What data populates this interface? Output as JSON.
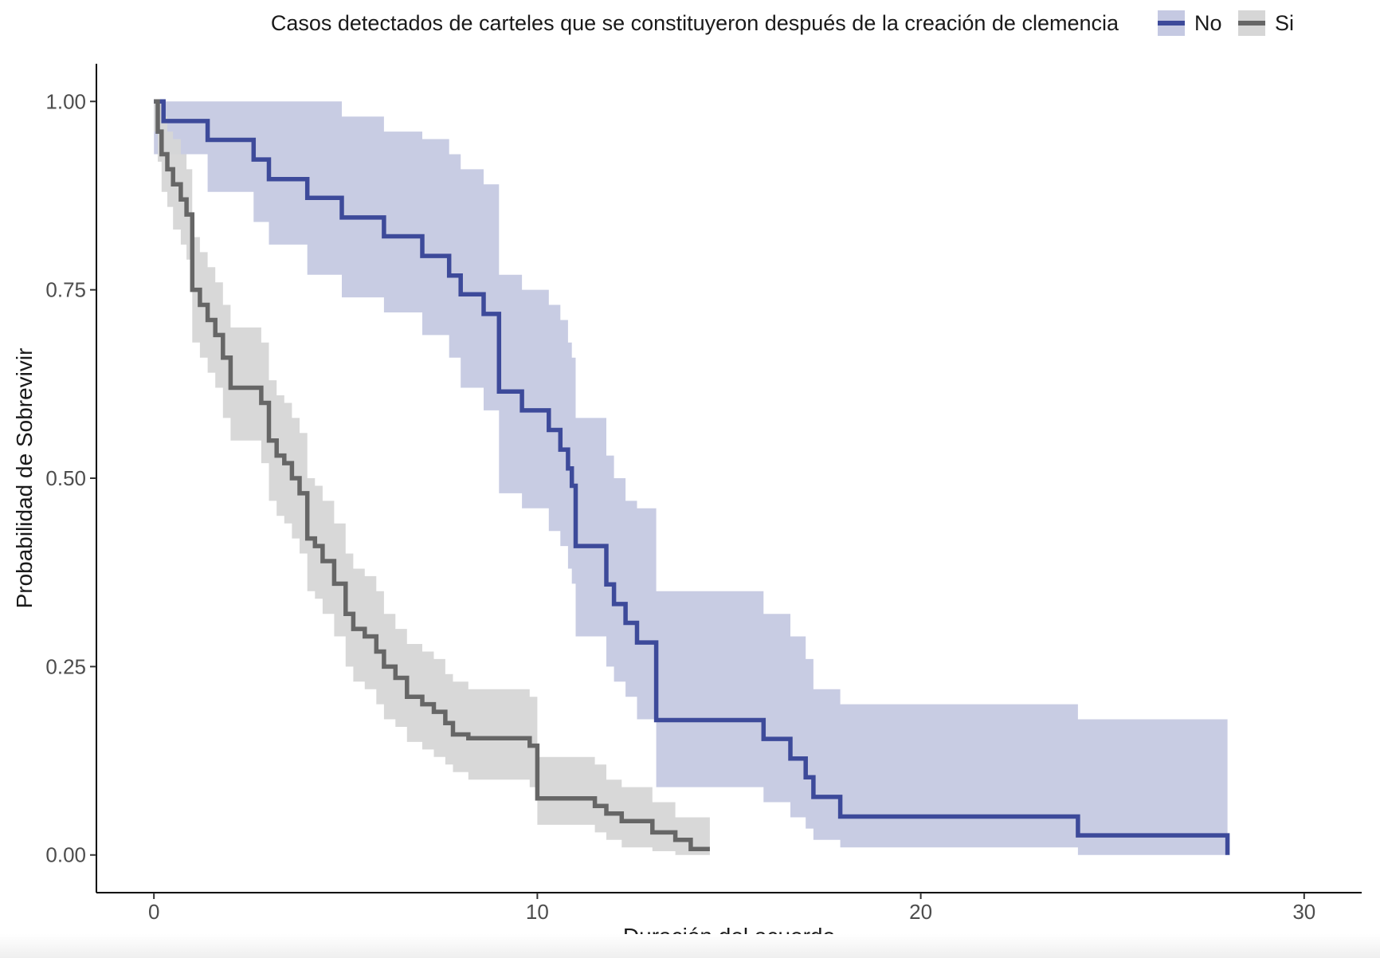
{
  "chart_data": {
    "type": "line",
    "subtype": "kaplan-meier",
    "legend_title": "Casos detectados de carteles que se constituyeron después de la creación de clemencia",
    "legend_position": "top",
    "xlabel": "Duración del acuerdo",
    "ylabel": "Probabilidad de Sobrevivir",
    "xlim": [
      -1.5,
      31.5
    ],
    "ylim": [
      -0.05,
      1.05
    ],
    "x_ticks": [
      0,
      10,
      20,
      30
    ],
    "x_tick_labels": [
      "0",
      "10",
      "20",
      "30"
    ],
    "y_ticks": [
      0,
      0.25,
      0.5,
      0.75,
      1
    ],
    "y_tick_labels": [
      "0.00",
      "0.25",
      "0.50",
      "0.75",
      "1.00"
    ],
    "grid": false,
    "series": [
      {
        "name": "No",
        "color": "#3d4a9a",
        "band_color": "#c5c9e2",
        "x": [
          0,
          0.25,
          1.4,
          2.6,
          3.0,
          4.0,
          4.9,
          6.0,
          7.0,
          7.7,
          8.0,
          8.6,
          9.0,
          9.6,
          10.3,
          10.6,
          10.8,
          10.9,
          11.0,
          11.8,
          12.0,
          12.3,
          12.6,
          13.1,
          15.9,
          16.6,
          17.0,
          17.2,
          17.9,
          24.1,
          28.0
        ],
        "y": [
          1.0,
          0.974,
          0.949,
          0.923,
          0.897,
          0.872,
          0.846,
          0.821,
          0.795,
          0.769,
          0.744,
          0.718,
          0.615,
          0.59,
          0.564,
          0.538,
          0.513,
          0.49,
          0.41,
          0.359,
          0.333,
          0.308,
          0.282,
          0.179,
          0.154,
          0.128,
          0.103,
          0.077,
          0.051,
          0.026,
          0.0
        ],
        "lower": [
          0.93,
          0.93,
          0.88,
          0.84,
          0.81,
          0.77,
          0.74,
          0.72,
          0.69,
          0.66,
          0.62,
          0.59,
          0.48,
          0.46,
          0.43,
          0.41,
          0.38,
          0.36,
          0.29,
          0.25,
          0.23,
          0.21,
          0.18,
          0.09,
          0.07,
          0.05,
          0.035,
          0.02,
          0.01,
          0.0,
          0.0
        ],
        "upper": [
          1.0,
          1.0,
          1.0,
          1.0,
          1.0,
          1.0,
          0.98,
          0.96,
          0.95,
          0.93,
          0.91,
          0.89,
          0.77,
          0.75,
          0.73,
          0.71,
          0.68,
          0.66,
          0.58,
          0.53,
          0.5,
          0.47,
          0.46,
          0.35,
          0.32,
          0.29,
          0.26,
          0.22,
          0.2,
          0.18,
          0.18
        ]
      },
      {
        "name": "Si",
        "color": "#666666",
        "band_color": "#d6d6d6",
        "x": [
          0,
          0.1,
          0.2,
          0.35,
          0.5,
          0.7,
          0.85,
          1.0,
          1.2,
          1.4,
          1.6,
          1.8,
          2.0,
          2.8,
          3.0,
          3.2,
          3.4,
          3.6,
          3.8,
          4.0,
          4.2,
          4.4,
          4.7,
          5.0,
          5.2,
          5.5,
          5.8,
          6.0,
          6.3,
          6.6,
          7.0,
          7.3,
          7.6,
          7.8,
          8.0,
          8.2,
          9.0,
          9.8,
          10.0,
          11.5,
          11.8,
          12.2,
          13.0,
          13.6,
          14.0,
          14.5
        ],
        "y": [
          1.0,
          0.96,
          0.93,
          0.91,
          0.89,
          0.87,
          0.85,
          0.75,
          0.73,
          0.71,
          0.69,
          0.66,
          0.62,
          0.6,
          0.55,
          0.53,
          0.52,
          0.5,
          0.48,
          0.42,
          0.41,
          0.39,
          0.36,
          0.32,
          0.3,
          0.29,
          0.27,
          0.25,
          0.235,
          0.21,
          0.2,
          0.19,
          0.175,
          0.16,
          0.16,
          0.155,
          0.155,
          0.145,
          0.075,
          0.065,
          0.055,
          0.045,
          0.03,
          0.02,
          0.008,
          0.008
        ],
        "lower": [
          0.96,
          0.92,
          0.88,
          0.86,
          0.83,
          0.81,
          0.79,
          0.68,
          0.66,
          0.64,
          0.62,
          0.58,
          0.55,
          0.52,
          0.47,
          0.45,
          0.44,
          0.42,
          0.4,
          0.35,
          0.34,
          0.32,
          0.29,
          0.25,
          0.23,
          0.22,
          0.2,
          0.18,
          0.17,
          0.15,
          0.14,
          0.13,
          0.12,
          0.11,
          0.11,
          0.1,
          0.1,
          0.09,
          0.04,
          0.03,
          0.02,
          0.01,
          0.005,
          0.0,
          0.0,
          0.0
        ],
        "upper": [
          1.0,
          1.0,
          0.98,
          0.96,
          0.95,
          0.93,
          0.91,
          0.82,
          0.8,
          0.78,
          0.76,
          0.73,
          0.7,
          0.68,
          0.63,
          0.61,
          0.6,
          0.58,
          0.56,
          0.5,
          0.49,
          0.47,
          0.44,
          0.4,
          0.38,
          0.37,
          0.35,
          0.32,
          0.3,
          0.28,
          0.27,
          0.26,
          0.24,
          0.23,
          0.23,
          0.22,
          0.22,
          0.21,
          0.13,
          0.12,
          0.1,
          0.09,
          0.07,
          0.05,
          0.05,
          0.05
        ]
      }
    ]
  }
}
